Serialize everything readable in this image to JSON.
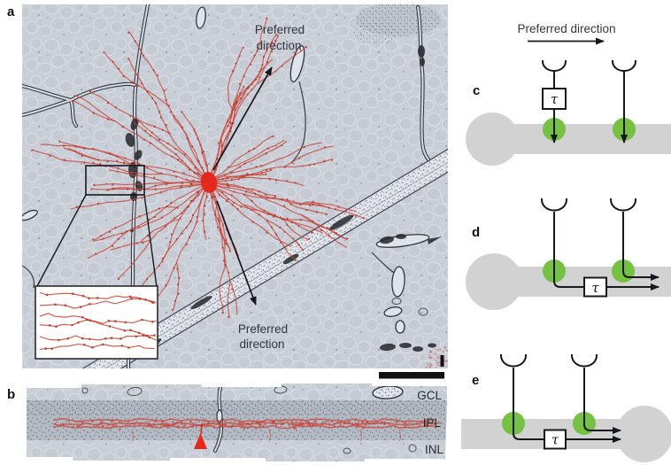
{
  "figure": {
    "panel_labels": {
      "a": "a",
      "b": "b",
      "c": "c",
      "d": "d",
      "e": "e"
    },
    "annotations": {
      "preferred_direction": "Preferred direction",
      "preferred_word": "Preferred",
      "direction_word": "direction",
      "tau": "τ"
    },
    "retina_layers": {
      "gcl": "GCL",
      "ipl": "IPL",
      "inl": "INL"
    },
    "colors": {
      "trace_red": "#c8453a",
      "soma_red": "#e4281b",
      "synapse_green": "#76c044",
      "dendrite_gray": "#d2d2d2",
      "em_background": "#c9ced7",
      "ink": "#15181c"
    }
  }
}
